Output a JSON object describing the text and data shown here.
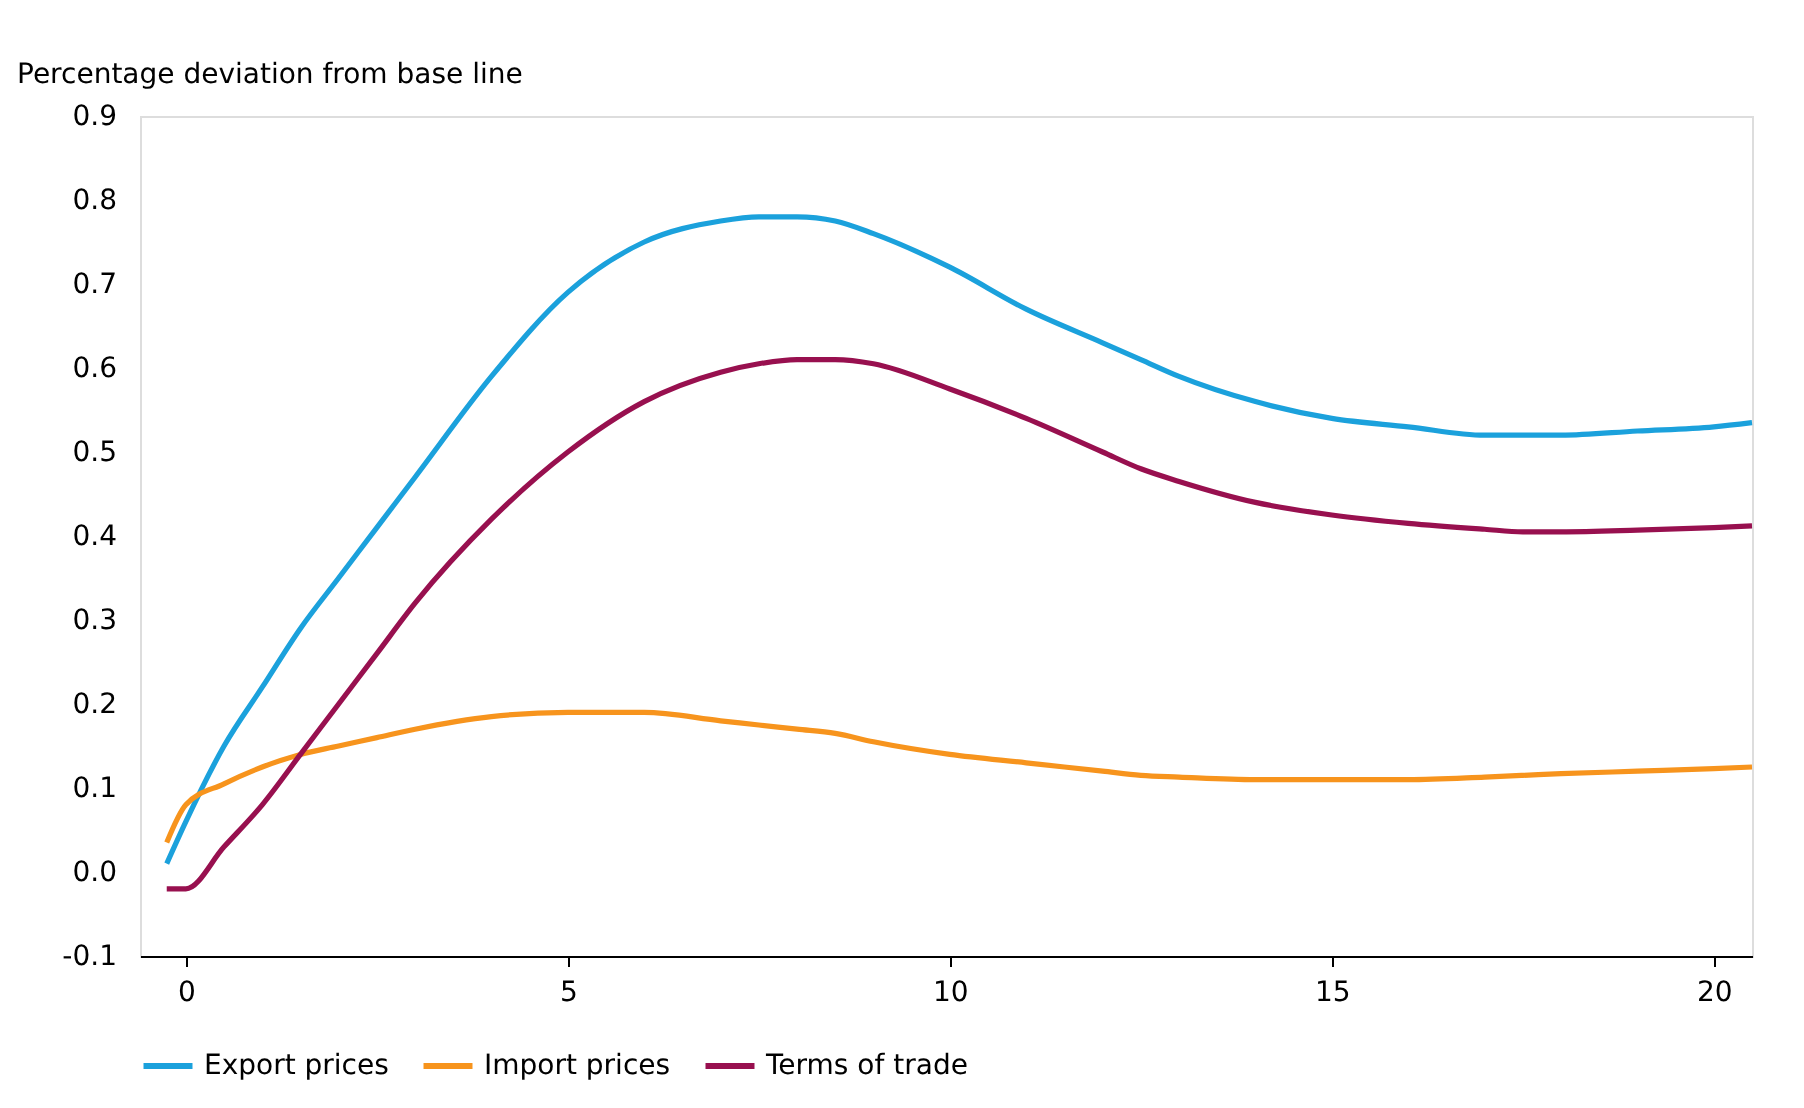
{
  "chart_data": {
    "type": "line",
    "ylabel": "Percentage deviation from base line",
    "x": [
      -0.25,
      0,
      0.5,
      1,
      1.5,
      2,
      2.5,
      3,
      4,
      5,
      6,
      7,
      7.5,
      8,
      8.5,
      9,
      10,
      11,
      12,
      12.5,
      13,
      14,
      15,
      16,
      17,
      17.5,
      18,
      19,
      20,
      20.5
    ],
    "series": [
      {
        "name": "Export prices",
        "color": "#1ba1dc",
        "values": [
          0.01,
          0.06,
          0.15,
          0.22,
          0.29,
          0.35,
          0.41,
          0.47,
          0.59,
          0.69,
          0.75,
          0.775,
          0.78,
          0.78,
          0.775,
          0.76,
          0.72,
          0.67,
          0.63,
          0.61,
          0.59,
          0.56,
          0.54,
          0.53,
          0.52,
          0.52,
          0.52,
          0.525,
          0.53,
          0.535
        ]
      },
      {
        "name": "Import prices",
        "color": "#f7941d",
        "values": [
          0.035,
          0.08,
          0.105,
          0.125,
          0.14,
          0.15,
          0.16,
          0.17,
          0.185,
          0.19,
          0.19,
          0.18,
          0.175,
          0.17,
          0.165,
          0.155,
          0.14,
          0.13,
          0.12,
          0.115,
          0.113,
          0.11,
          0.11,
          0.11,
          0.113,
          0.115,
          0.117,
          0.12,
          0.123,
          0.125
        ]
      },
      {
        "name": "Terms of trade",
        "color": "#98104f",
        "values": [
          -0.02,
          -0.02,
          0.03,
          0.08,
          0.14,
          0.2,
          0.26,
          0.32,
          0.42,
          0.5,
          0.56,
          0.595,
          0.605,
          0.61,
          0.61,
          0.605,
          0.575,
          0.54,
          0.5,
          0.48,
          0.465,
          0.44,
          0.425,
          0.415,
          0.408,
          0.405,
          0.405,
          0.407,
          0.41,
          0.412
        ]
      }
    ],
    "xlim": [
      -0.6,
      20.5
    ],
    "xticks": [
      0,
      5,
      10,
      15,
      20
    ],
    "ylim": [
      -0.1,
      0.9
    ],
    "yticks": [
      -0.1,
      {
        "value": 0,
        "label": "0.0"
      },
      0.1,
      0.2,
      0.3,
      0.4,
      0.5,
      0.6,
      0.7,
      0.8,
      0.9
    ],
    "grid": false,
    "legend": "bottom left",
    "marker": "none",
    "line_style": "solid"
  }
}
